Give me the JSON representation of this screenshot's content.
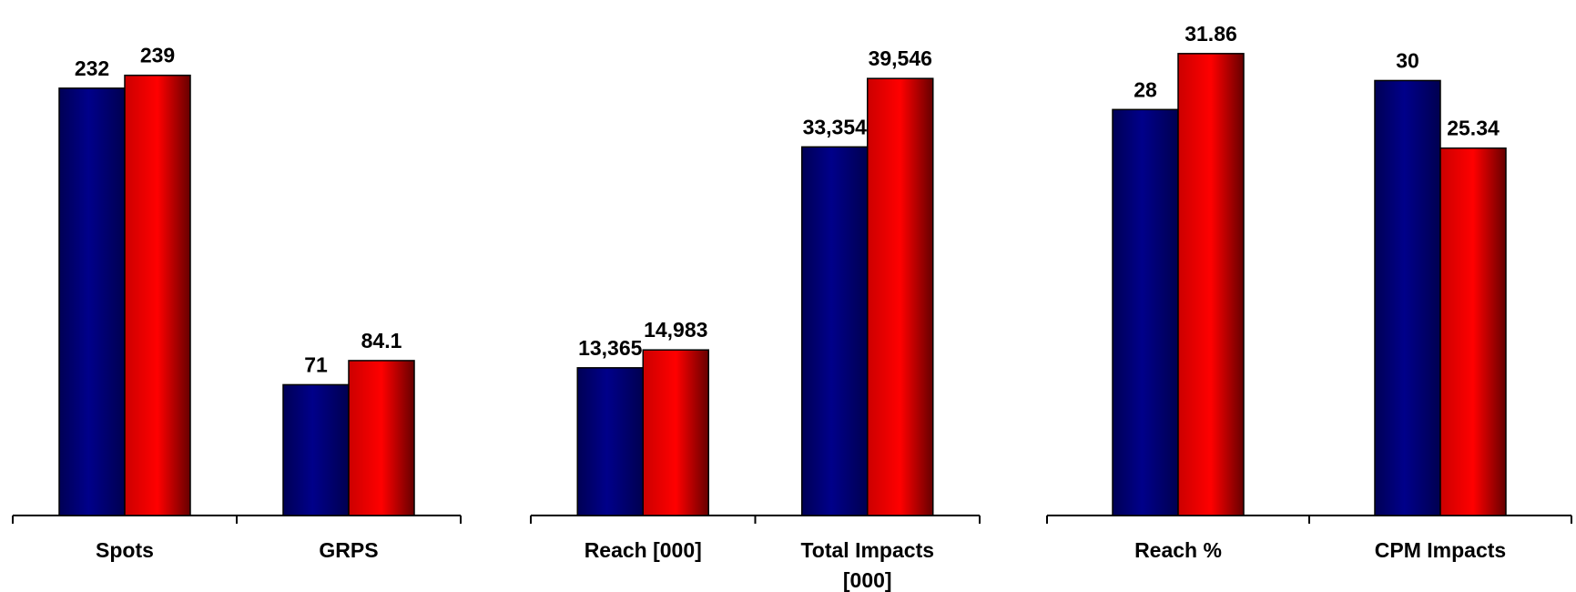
{
  "colors": {
    "series_a": "#00007a",
    "series_b": "#ff0000"
  },
  "chart_data": [
    {
      "type": "bar",
      "categories": [
        "Spots",
        "GRPS"
      ],
      "series": [
        {
          "values": [
            232,
            71
          ],
          "value_labels": [
            "232",
            "71"
          ]
        },
        {
          "values": [
            239,
            84.1
          ],
          "value_labels": [
            "239",
            "84.1"
          ]
        }
      ],
      "title": "",
      "xlabel": "",
      "ylabel": "",
      "ylim": [
        0,
        270
      ],
      "grid": false
    },
    {
      "type": "bar",
      "categories": [
        "Reach [000]",
        "Total Impacts [000]"
      ],
      "series": [
        {
          "values": [
            13365,
            33354
          ],
          "value_labels": [
            "13,365",
            "33,354"
          ]
        },
        {
          "values": [
            14983,
            39546
          ],
          "value_labels": [
            "14,983",
            "39,546"
          ]
        }
      ],
      "title": "",
      "xlabel": "",
      "ylabel": "",
      "ylim": [
        0,
        45000
      ],
      "grid": false
    },
    {
      "type": "bar",
      "categories": [
        "Reach %",
        "CPM Impacts"
      ],
      "series": [
        {
          "values": [
            28,
            30
          ],
          "value_labels": [
            "28",
            "30"
          ]
        },
        {
          "values": [
            31.86,
            25.34
          ],
          "value_labels": [
            "31.86",
            "25.34"
          ]
        }
      ],
      "title": "",
      "xlabel": "",
      "ylabel": "",
      "ylim": [
        0,
        34.3
      ],
      "grid": false
    }
  ]
}
